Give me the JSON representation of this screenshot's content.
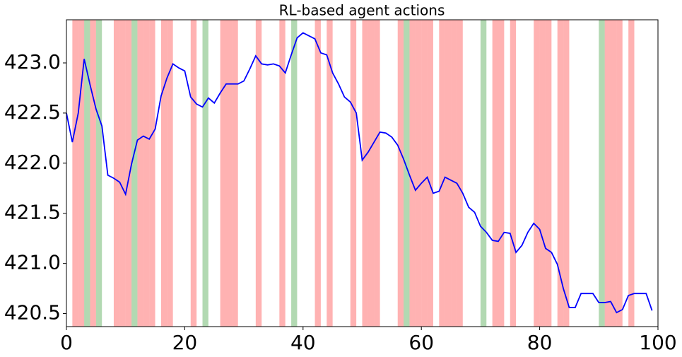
{
  "chart_data": {
    "type": "line",
    "title": "RL-based agent actions",
    "x": [
      0,
      1,
      2,
      3,
      4,
      5,
      6,
      7,
      8,
      9,
      10,
      11,
      12,
      13,
      14,
      15,
      16,
      17,
      18,
      19,
      20,
      21,
      22,
      23,
      24,
      25,
      26,
      27,
      28,
      29,
      30,
      31,
      32,
      33,
      34,
      35,
      36,
      37,
      38,
      39,
      40,
      41,
      42,
      43,
      44,
      45,
      46,
      47,
      48,
      49,
      50,
      51,
      52,
      53,
      54,
      55,
      56,
      57,
      58,
      59,
      60,
      61,
      62,
      63,
      64,
      65,
      66,
      67,
      68,
      69,
      70,
      71,
      72,
      73,
      74,
      75,
      76,
      77,
      78,
      79,
      80,
      81,
      82,
      83,
      84,
      85,
      86,
      87,
      88,
      89,
      90,
      91,
      92,
      93,
      94,
      95,
      96,
      97,
      98,
      99
    ],
    "series": [
      {
        "color": "#0000ff",
        "values": [
          422.5,
          422.21,
          422.5,
          423.04,
          422.78,
          422.54,
          422.37,
          421.88,
          421.85,
          421.81,
          421.69,
          421.99,
          422.23,
          422.27,
          422.24,
          422.34,
          422.67,
          422.85,
          422.99,
          422.95,
          422.92,
          422.66,
          422.59,
          422.56,
          422.65,
          422.6,
          422.7,
          422.79,
          422.79,
          422.79,
          422.82,
          422.94,
          423.07,
          422.99,
          422.98,
          422.99,
          422.97,
          422.9,
          423.08,
          423.25,
          423.3,
          423.27,
          423.24,
          423.1,
          423.08,
          422.9,
          422.79,
          422.66,
          422.61,
          422.5,
          422.03,
          422.11,
          422.21,
          422.31,
          422.3,
          422.26,
          422.18,
          422.04,
          421.88,
          421.73,
          421.8,
          421.86,
          421.7,
          421.72,
          421.86,
          421.83,
          421.8,
          421.7,
          421.56,
          421.51,
          421.37,
          421.31,
          421.23,
          421.22,
          421.31,
          421.3,
          421.11,
          421.18,
          421.31,
          421.4,
          421.34,
          421.15,
          421.11,
          420.99,
          420.75,
          420.56,
          420.56,
          420.7,
          420.7,
          420.7,
          420.61,
          420.61,
          420.62,
          420.51,
          420.54,
          420.68,
          420.7,
          420.7,
          420.7,
          420.53
        ]
      }
    ],
    "spans": [
      {
        "color": "#ff0000",
        "opacity": 0.3,
        "x": [
          1,
          2,
          4,
          8,
          9,
          10,
          12,
          13,
          14,
          16,
          17,
          21,
          26,
          27,
          28,
          32,
          36,
          42,
          44,
          48,
          50,
          51,
          52,
          56,
          58,
          59,
          60,
          61,
          63,
          64,
          65,
          66,
          72,
          73,
          75,
          79,
          80,
          81,
          83,
          84,
          91,
          92,
          93,
          95
        ]
      },
      {
        "color": "#008000",
        "opacity": 0.3,
        "x": [
          3,
          5,
          11,
          23,
          38,
          57,
          70,
          90
        ]
      }
    ],
    "xlim": [
      0,
      100
    ],
    "xticks": [
      0,
      20,
      40,
      60,
      80,
      100
    ],
    "ylim": [
      420.37,
      423.43
    ],
    "yticks": [
      420.5,
      {
        "value": 421,
        "label": "421.0"
      },
      421.5,
      {
        "value": 422,
        "label": "422.0"
      },
      422.5,
      {
        "value": 423,
        "label": "423.0"
      }
    ]
  }
}
